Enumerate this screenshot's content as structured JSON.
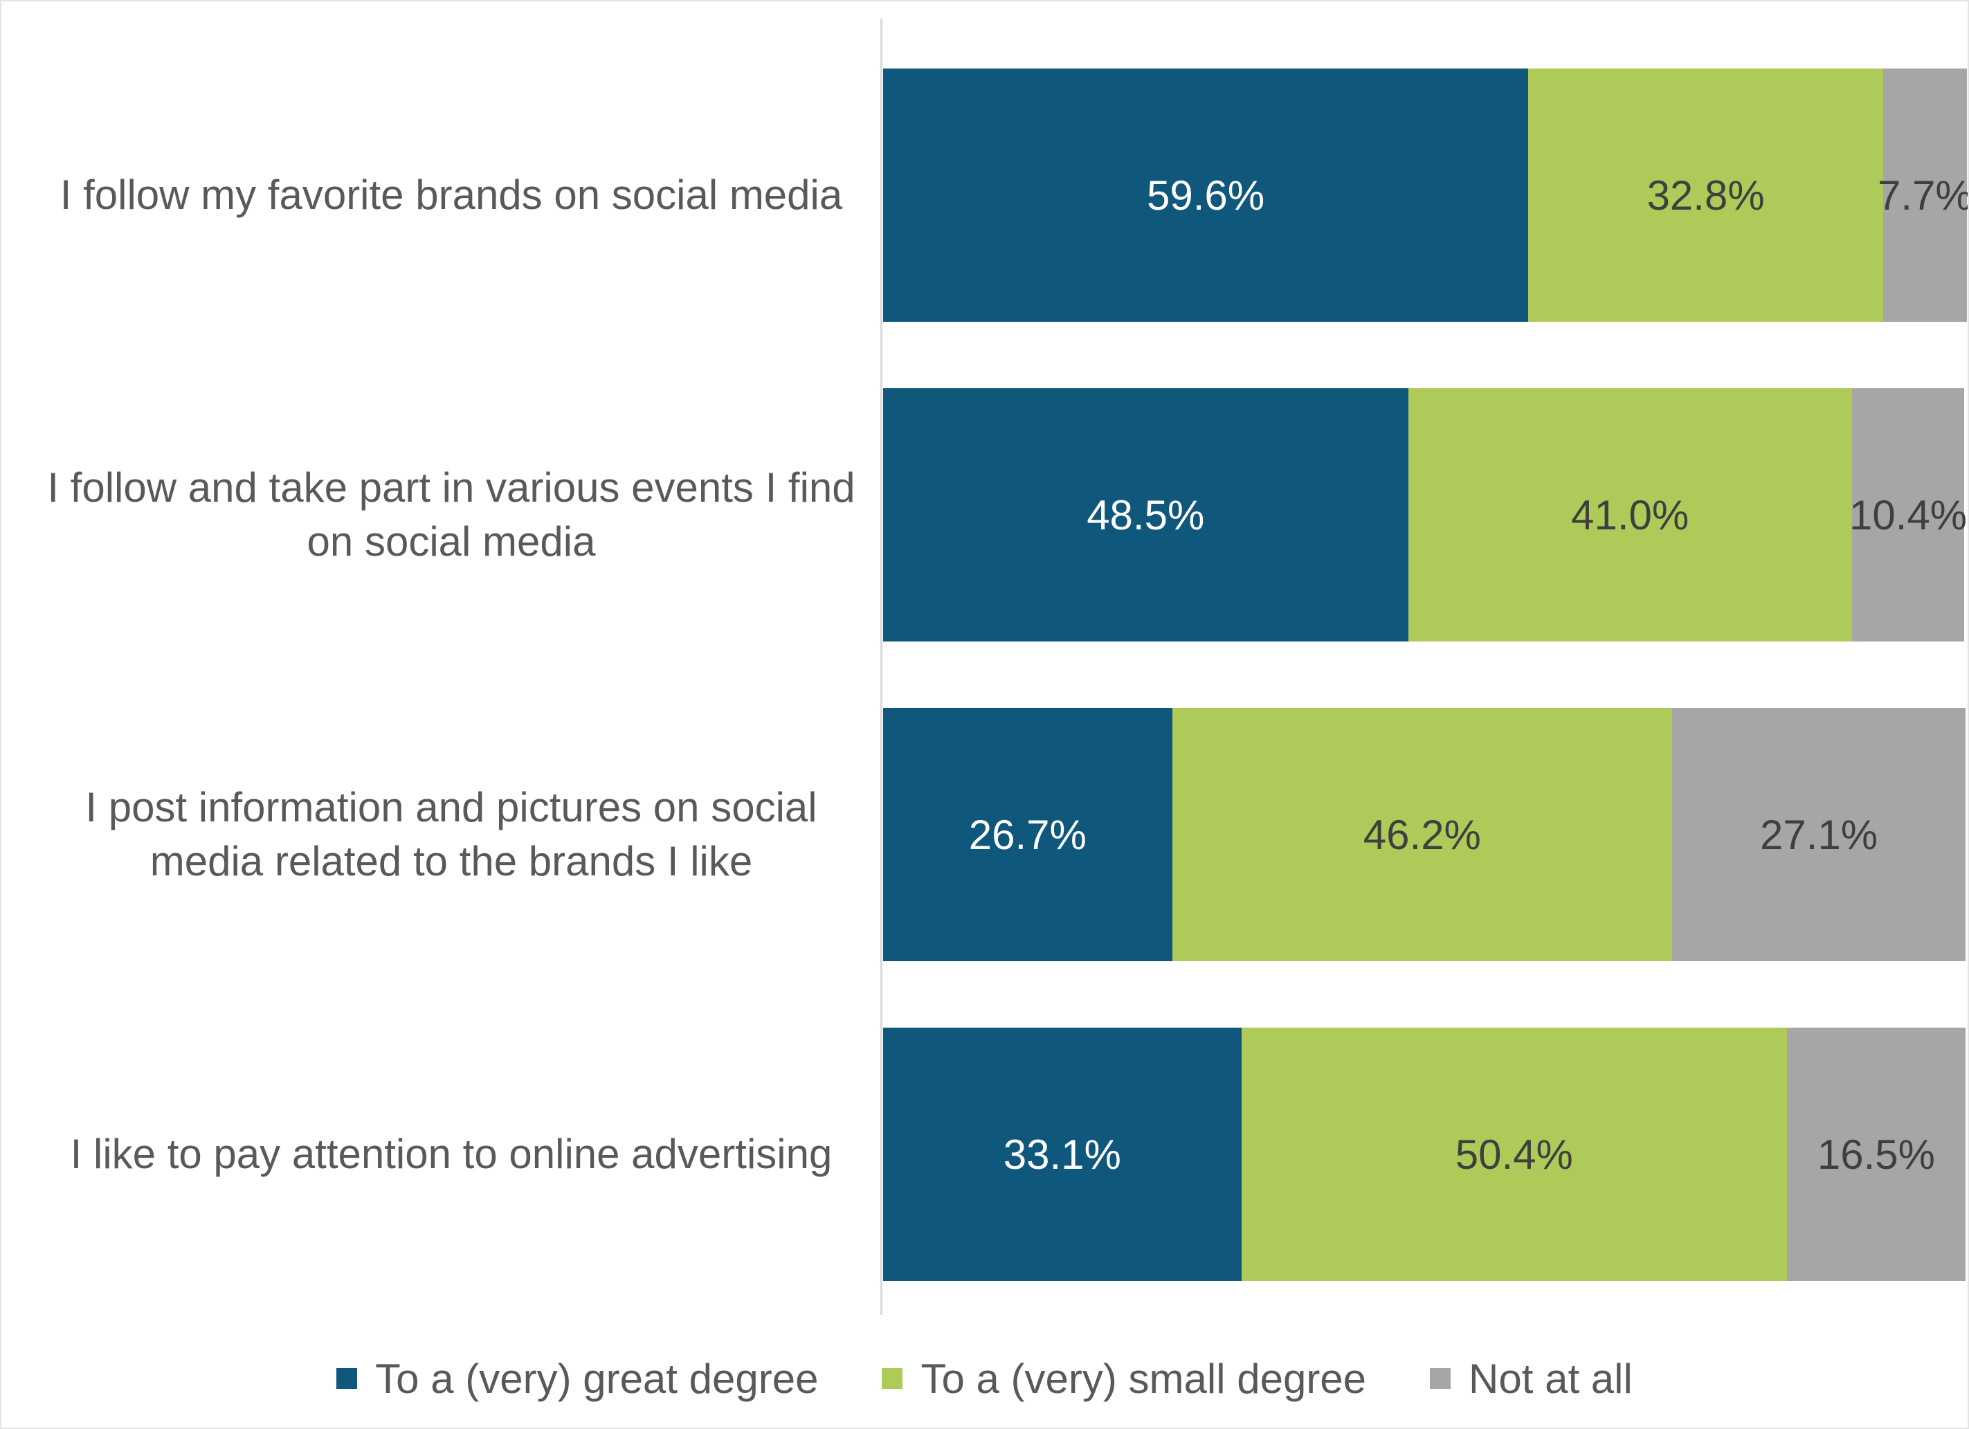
{
  "chart": {
    "background_color": "#FFFFFF",
    "border_color": "#E4E4E4",
    "axis_line_color": "#D9D9D9",
    "category_label_color": "#595959",
    "legend_text_color": "#595959"
  },
  "chart_data": {
    "type": "bar",
    "orientation": "horizontal",
    "stacked": true,
    "grid": false,
    "xlim": [
      0,
      100
    ],
    "value_suffix": "%",
    "legend_position": "bottom",
    "categories": [
      "I follow my favorite brands on social media",
      "I follow and take part in various events I find on social media",
      "I post information and pictures on social media related to the brands I like",
      "I like to pay attention to online advertising"
    ],
    "series": [
      {
        "name": "To a (very) great degree",
        "color": "#10577C",
        "label_color": "#FFFFFF",
        "values": [
          59.6,
          48.5,
          26.7,
          33.1
        ]
      },
      {
        "name": "To a (very) small degree",
        "color": "#AECB5A",
        "label_color": "#3F3F3F",
        "values": [
          32.8,
          41.0,
          46.2,
          50.4
        ]
      },
      {
        "name": "Not at all",
        "color": "#A6A6A6",
        "label_color": "#3F3F3F",
        "values": [
          7.7,
          10.4,
          27.1,
          16.5
        ]
      }
    ],
    "data_labels_visible": true
  }
}
